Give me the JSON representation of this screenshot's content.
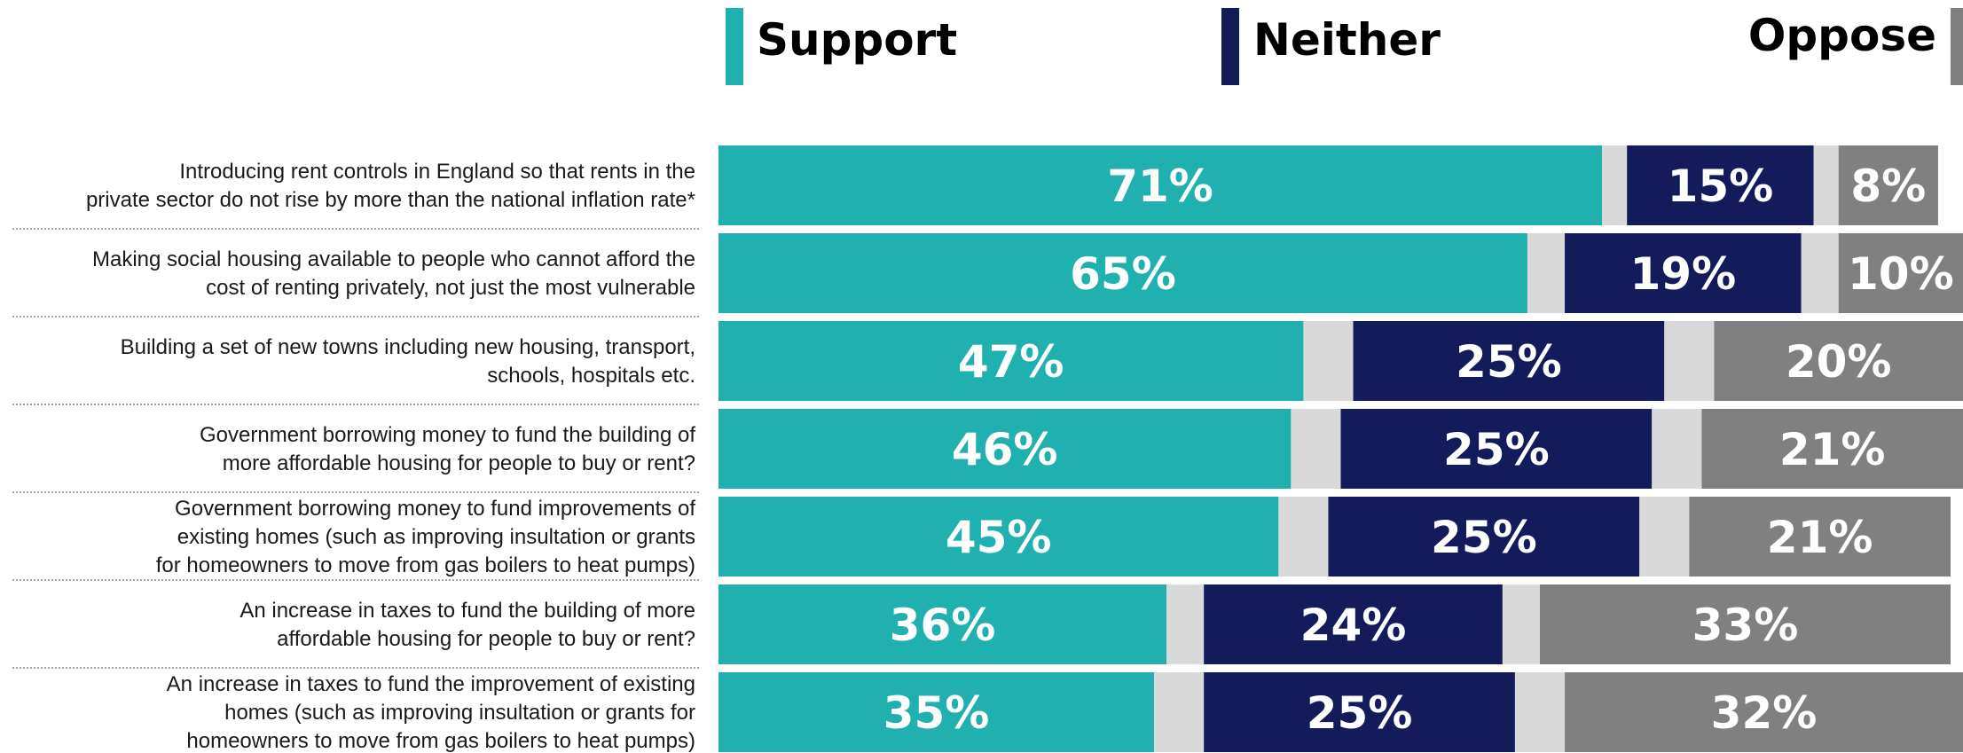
{
  "chart_data": {
    "type": "bar",
    "orientation": "horizontal",
    "stacked": true,
    "title": "",
    "xlabel": "",
    "ylabel": "",
    "xlim": [
      0,
      100
    ],
    "legend_position": "top",
    "categories": [
      "Introducing rent controls in England so that rents in the private sector do not rise by more than the national inflation rate*",
      "Making social housing available to people who cannot afford the cost of renting privately, not just the most vulnerable",
      "Building a set of new towns including new housing, transport, schools, hospitals etc.",
      "Government borrowing money to fund the building of more affordable housing for people to buy or rent?",
      "Government borrowing money to fund improvements of existing homes (such as improving insultation or grants for homeowners to move from gas boilers to heat pumps)",
      "An increase in taxes to fund the building of more affordable housing for people to buy or rent?",
      "An increase in taxes to fund the improvement of existing homes (such as improving insultation or grants for homeowners to move from gas boilers to heat pumps)"
    ],
    "category_lines": [
      [
        "Introducing rent controls in England so that rents in the",
        "private sector do not rise by more than the national inflation rate*"
      ],
      [
        "Making social housing available to people who cannot afford the",
        "cost of renting privately, not just the most vulnerable"
      ],
      [
        "Building a set of new towns including new housing, transport,",
        "schools, hospitals etc."
      ],
      [
        "Government borrowing money to fund the building of",
        "more affordable housing for people to buy or rent?"
      ],
      [
        "Government borrowing money to fund improvements of",
        "existing homes (such as improving insultation or grants",
        "for homeowners to move from gas boilers to heat pumps)"
      ],
      [
        "An increase in taxes to fund the building of more",
        "affordable housing for people to buy or rent?"
      ],
      [
        "An increase in taxes to fund the improvement of existing",
        "homes (such as improving insultation or grants for",
        "homeowners to move from gas boilers to heat pumps)"
      ]
    ],
    "series": [
      {
        "name": "Support",
        "color": "#20b0b0",
        "values": [
          71,
          65,
          47,
          46,
          45,
          36,
          35
        ],
        "labels": [
          "71%",
          "65%",
          "47%",
          "46%",
          "45%",
          "36%",
          "35%"
        ]
      },
      {
        "color": "#d9d9d9",
        "values": [
          2,
          3,
          4,
          4,
          4,
          3,
          4
        ]
      },
      {
        "name": "Neither",
        "color": "#131b5a",
        "values": [
          15,
          19,
          25,
          25,
          25,
          24,
          25
        ],
        "labels": [
          "15%",
          "19%",
          "25%",
          "25%",
          "25%",
          "24%",
          "25%"
        ]
      },
      {
        "color": "#d9d9d9",
        "values": [
          2,
          3,
          4,
          4,
          4,
          3,
          4
        ]
      },
      {
        "name": "Oppose",
        "color": "#808080",
        "values": [
          8,
          10,
          20,
          21,
          21,
          33,
          32
        ],
        "labels": [
          "8%",
          "10%",
          "20%",
          "21%",
          "21%",
          "33%",
          "32%"
        ]
      }
    ]
  }
}
